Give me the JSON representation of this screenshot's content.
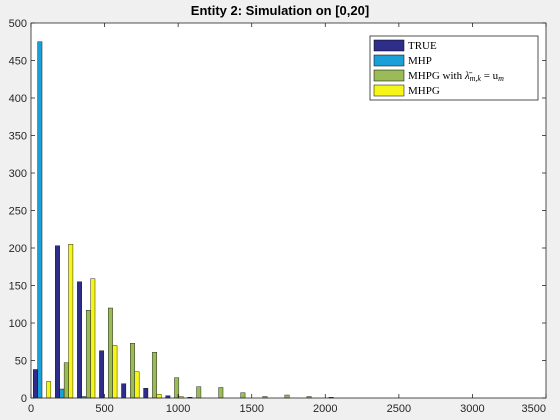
{
  "chart_data": {
    "type": "bar",
    "title": "Entity 2: Simulation on [0,20]",
    "xlabel": "",
    "ylabel": "",
    "xlim": [
      0,
      3500
    ],
    "ylim": [
      0,
      500
    ],
    "x_ticks": [
      0,
      500,
      1000,
      1500,
      2000,
      2500,
      3000,
      3500
    ],
    "y_ticks": [
      0,
      50,
      100,
      150,
      200,
      250,
      300,
      350,
      400,
      450,
      500
    ],
    "bin_width": 150,
    "grid": false,
    "legend_position": "top-right",
    "series": [
      {
        "name": "TRUE",
        "color": "#2e2e8a",
        "bins": [
          {
            "x": 0,
            "value": 38
          },
          {
            "x": 150,
            "value": 203
          },
          {
            "x": 300,
            "value": 155
          },
          {
            "x": 450,
            "value": 63
          },
          {
            "x": 600,
            "value": 19
          },
          {
            "x": 750,
            "value": 13
          },
          {
            "x": 900,
            "value": 3
          },
          {
            "x": 1050,
            "value": 1
          }
        ]
      },
      {
        "name": "MHP",
        "color": "#1a9fd8",
        "bins": [
          {
            "x": 0,
            "value": 475
          },
          {
            "x": 150,
            "value": 12
          },
          {
            "x": 300,
            "value": 2
          }
        ]
      },
      {
        "name_prefix": "MHPG with ",
        "name_math": "λ̄",
        "name_sub": "m,k",
        "name_suffix": " = u",
        "name_sub2": "m",
        "color": "#9bbb59",
        "bins": [
          {
            "x": 150,
            "value": 47
          },
          {
            "x": 300,
            "value": 117
          },
          {
            "x": 450,
            "value": 120
          },
          {
            "x": 600,
            "value": 73
          },
          {
            "x": 750,
            "value": 61
          },
          {
            "x": 900,
            "value": 27
          },
          {
            "x": 1050,
            "value": 15
          },
          {
            "x": 1200,
            "value": 14
          },
          {
            "x": 1350,
            "value": 7
          },
          {
            "x": 1500,
            "value": 2
          },
          {
            "x": 1650,
            "value": 4
          },
          {
            "x": 1800,
            "value": 2
          },
          {
            "x": 1950,
            "value": 1
          }
        ]
      },
      {
        "name": "MHPG",
        "color": "#f5f51a",
        "bins": [
          {
            "x": 0,
            "value": 22
          },
          {
            "x": 150,
            "value": 205
          },
          {
            "x": 300,
            "value": 159
          },
          {
            "x": 450,
            "value": 70
          },
          {
            "x": 600,
            "value": 35
          },
          {
            "x": 750,
            "value": 5
          },
          {
            "x": 900,
            "value": 2
          }
        ]
      }
    ]
  }
}
